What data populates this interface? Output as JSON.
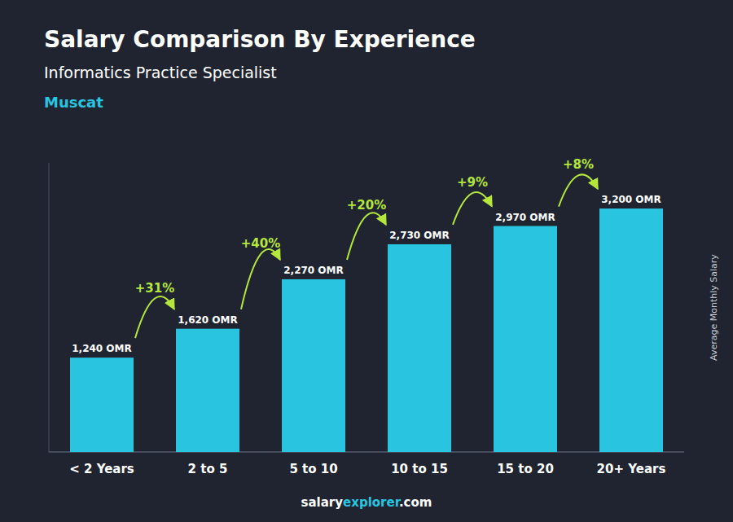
{
  "chart_data": {
    "type": "bar",
    "title": "Salary Comparison By Experience",
    "subtitle": "Informatics Practice Specialist",
    "city": "Muscat",
    "ylabel": "Average Monthly Salary",
    "footer": [
      "salary",
      "explorer",
      ".com"
    ],
    "categories": [
      "< 2 Years",
      "2 to 5",
      "5 to 10",
      "10 to 15",
      "15 to 20",
      "20+ Years"
    ],
    "values": [
      1240,
      1620,
      2270,
      2730,
      2970,
      3200
    ],
    "value_labels": [
      "1,240 OMR",
      "1,620 OMR",
      "2,270 OMR",
      "2,730 OMR",
      "2,970 OMR",
      "3,200 OMR"
    ],
    "data_labels": true,
    "annotations": [
      "+31%",
      "+40%",
      "+20%",
      "+9%",
      "+8%"
    ],
    "color": "#29C4E0",
    "ylim": [
      0,
      3800
    ],
    "grid": false,
    "tick_labels": "x"
  }
}
